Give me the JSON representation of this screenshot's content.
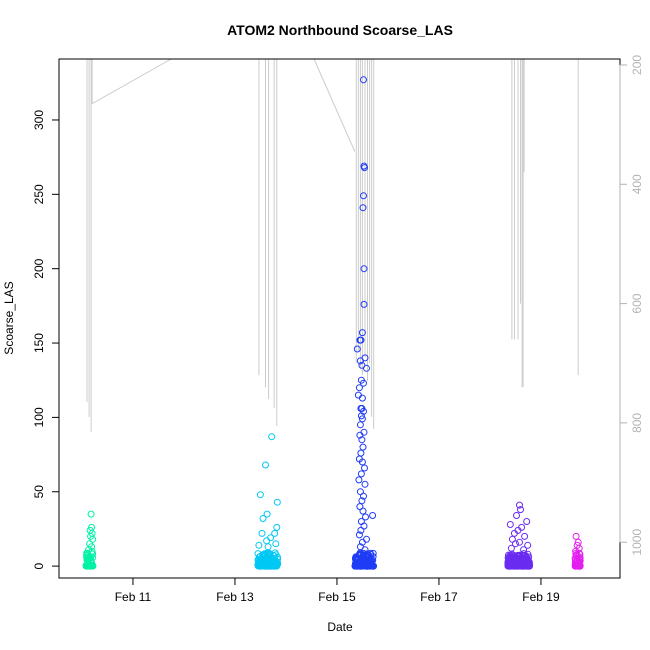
{
  "chart_data": {
    "type": "scatter",
    "title": "ATOM2 Northbound Scoarse_LAS",
    "xlabel": "Date",
    "ylabel": "Scoarse_LAS",
    "x_ticks": [
      "Feb 11",
      "Feb 13",
      "Feb 15",
      "Feb 17",
      "Feb 19"
    ],
    "x_tick_days": [
      11,
      13,
      15,
      17,
      19
    ],
    "xlim_days": [
      9.55,
      20.55
    ],
    "ylim": [
      -8,
      341
    ],
    "y_ticks": [
      0,
      50,
      100,
      150,
      200,
      250,
      300
    ],
    "right_axis": {
      "ticks": [
        200,
        400,
        600,
        800,
        1000
      ],
      "lim_top_to_bottom": [
        190,
        1060
      ],
      "reversed": true,
      "color": "#b3b3b3"
    },
    "grid": false,
    "legend": "none",
    "series": [
      {
        "color": "#00f2a6",
        "clusters": [
          {
            "start": 10.08,
            "end": 10.22,
            "outliers": [
              [
                10.18,
                35
              ],
              [
                10.19,
                26
              ],
              [
                10.16,
                24
              ],
              [
                10.2,
                22
              ],
              [
                10.17,
                20
              ],
              [
                10.21,
                18
              ],
              [
                10.15,
                15
              ],
              [
                10.19,
                13
              ],
              [
                10.13,
                11
              ],
              [
                10.2,
                10
              ]
            ]
          }
        ]
      },
      {
        "color": "#00c8f5",
        "clusters": [
          {
            "start": 13.45,
            "end": 13.85,
            "outliers": [
              [
                13.72,
                87
              ],
              [
                13.6,
                68
              ],
              [
                13.5,
                48
              ],
              [
                13.83,
                43
              ],
              [
                13.63,
                35
              ],
              [
                13.55,
                32
              ],
              [
                13.82,
                26
              ],
              [
                13.78,
                22
              ],
              [
                13.53,
                22
              ],
              [
                13.7,
                19
              ],
              [
                13.62,
                17
              ],
              [
                13.8,
                15
              ],
              [
                13.47,
                14
              ],
              [
                13.65,
                13
              ]
            ]
          }
        ]
      },
      {
        "color": "#1f3cf6",
        "clusters": [
          {
            "start": 15.35,
            "end": 15.72,
            "outliers": [
              [
                15.52,
                327
              ],
              [
                15.53,
                269
              ],
              [
                15.54,
                268
              ],
              [
                15.52,
                249
              ],
              [
                15.51,
                241
              ],
              [
                15.53,
                200
              ],
              [
                15.53,
                176
              ],
              [
                15.5,
                157
              ],
              [
                15.45,
                152
              ],
              [
                15.47,
                152
              ],
              [
                15.4,
                146
              ],
              [
                15.55,
                140
              ],
              [
                15.46,
                138
              ],
              [
                15.49,
                135
              ],
              [
                15.58,
                133
              ],
              [
                15.48,
                125
              ],
              [
                15.52,
                123
              ],
              [
                15.44,
                120
              ],
              [
                15.42,
                115
              ],
              [
                15.5,
                113
              ],
              [
                15.47,
                106
              ],
              [
                15.49,
                106
              ],
              [
                15.52,
                104
              ],
              [
                15.48,
                101
              ],
              [
                15.5,
                99
              ],
              [
                15.46,
                95
              ],
              [
                15.53,
                90
              ],
              [
                15.45,
                88
              ],
              [
                15.49,
                85
              ],
              [
                15.51,
                80
              ],
              [
                15.47,
                76
              ],
              [
                15.44,
                72
              ],
              [
                15.5,
                70
              ],
              [
                15.54,
                66
              ],
              [
                15.48,
                62
              ],
              [
                15.43,
                58
              ],
              [
                15.55,
                55
              ],
              [
                15.46,
                50
              ],
              [
                15.52,
                47
              ],
              [
                15.49,
                44
              ],
              [
                15.45,
                40
              ],
              [
                15.51,
                37
              ],
              [
                15.7,
                34
              ],
              [
                15.56,
                33
              ],
              [
                15.48,
                30
              ],
              [
                15.53,
                27
              ],
              [
                15.47,
                24
              ],
              [
                15.44,
                21
              ],
              [
                15.58,
                18
              ],
              [
                15.5,
                16
              ],
              [
                15.46,
                13
              ],
              [
                15.55,
                11
              ]
            ]
          }
        ]
      },
      {
        "color": "#6a2cf0",
        "clusters": [
          {
            "start": 18.35,
            "end": 18.78,
            "outliers": [
              [
                18.58,
                41
              ],
              [
                18.6,
                38
              ],
              [
                18.52,
                34
              ],
              [
                18.72,
                30
              ],
              [
                18.4,
                28
              ],
              [
                18.62,
                26
              ],
              [
                18.55,
                24
              ],
              [
                18.48,
                22
              ],
              [
                18.68,
                20
              ],
              [
                18.44,
                18
              ],
              [
                18.58,
                16
              ],
              [
                18.5,
                15
              ],
              [
                18.74,
                14
              ],
              [
                18.42,
                12
              ],
              [
                18.66,
                11
              ]
            ]
          }
        ]
      },
      {
        "color": "#e41ff0",
        "clusters": [
          {
            "start": 19.67,
            "end": 19.77,
            "outliers": [
              [
                19.69,
                20
              ],
              [
                19.73,
                16
              ],
              [
                19.71,
                14
              ],
              [
                19.75,
                12
              ],
              [
                19.68,
                10
              ]
            ]
          }
        ]
      }
    ],
    "line_series": {
      "color": "#cccccc",
      "axis": "right",
      "description_free": true,
      "segments": [
        [
          [
            10.1,
            170
          ],
          [
            10.1,
            765
          ]
        ],
        [
          [
            10.14,
            170
          ],
          [
            10.14,
            790
          ]
        ],
        [
          [
            10.18,
            170
          ],
          [
            10.18,
            815
          ]
        ],
        [
          [
            10.2,
            170
          ],
          [
            10.2,
            265
          ],
          [
            11.75,
            170
          ]
        ],
        [
          [
            13.47,
            170
          ],
          [
            13.47,
            720
          ]
        ],
        [
          [
            13.53,
            170
          ],
          [
            13.53,
            150
          ]
        ],
        [
          [
            13.6,
            170
          ],
          [
            13.6,
            740
          ]
        ],
        [
          [
            13.66,
            170
          ],
          [
            13.66,
            760
          ]
        ],
        [
          [
            13.77,
            170
          ],
          [
            13.77,
            775
          ]
        ],
        [
          [
            13.82,
            170
          ],
          [
            13.82,
            805
          ]
        ],
        [
          [
            14.55,
            170
          ],
          [
            15.35,
            345
          ]
        ],
        [
          [
            15.38,
            170
          ],
          [
            15.38,
            700
          ]
        ],
        [
          [
            15.42,
            170
          ],
          [
            15.42,
            680
          ]
        ],
        [
          [
            15.46,
            170
          ],
          [
            15.46,
            710
          ]
        ],
        [
          [
            15.5,
            170
          ],
          [
            15.5,
            720
          ]
        ],
        [
          [
            15.55,
            170
          ],
          [
            15.55,
            690
          ]
        ],
        [
          [
            15.6,
            170
          ],
          [
            15.6,
            730
          ]
        ],
        [
          [
            15.64,
            170
          ],
          [
            15.64,
            700
          ]
        ],
        [
          [
            15.68,
            170
          ],
          [
            15.68,
            790
          ]
        ],
        [
          [
            15.72,
            170
          ],
          [
            15.72,
            810
          ]
        ],
        [
          [
            18.43,
            170
          ],
          [
            18.43,
            660
          ]
        ],
        [
          [
            18.48,
            170
          ],
          [
            18.48,
            660
          ]
        ],
        [
          [
            18.55,
            170
          ],
          [
            18.55,
            660
          ]
        ],
        [
          [
            18.6,
            170
          ],
          [
            18.6,
            600
          ]
        ],
        [
          [
            18.63,
            170
          ],
          [
            18.63,
            740
          ]
        ],
        [
          [
            18.65,
            170
          ],
          [
            18.65,
            740
          ]
        ],
        [
          [
            18.67,
            170
          ],
          [
            18.67,
            380
          ]
        ],
        [
          [
            19.73,
            170
          ],
          [
            19.73,
            720
          ]
        ]
      ]
    }
  }
}
